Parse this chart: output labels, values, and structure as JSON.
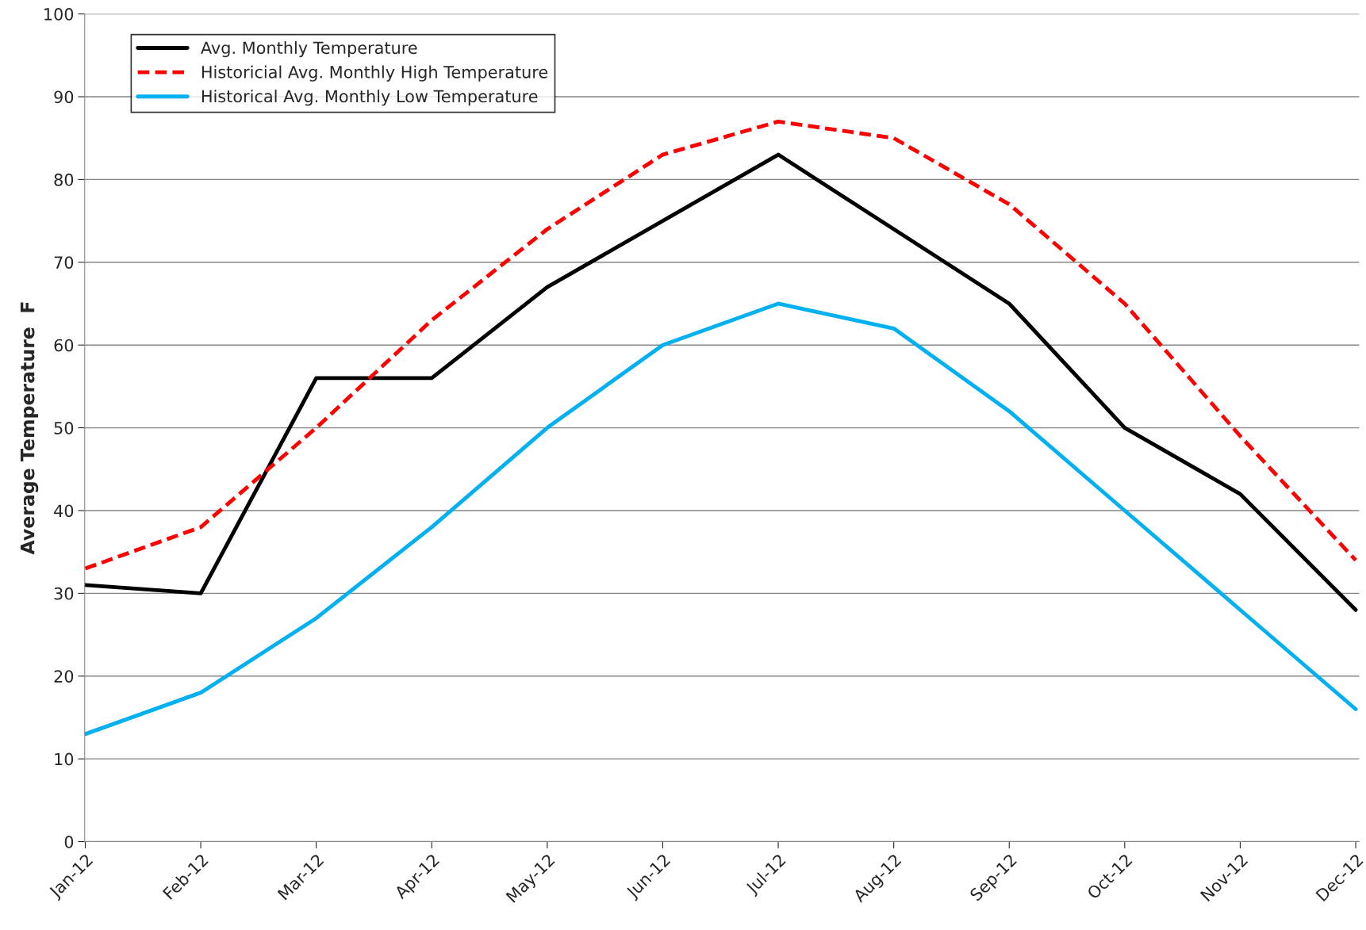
{
  "chart_data": {
    "type": "line",
    "ylabel": "Average Temperature  F",
    "categories": [
      "Jan-12",
      "Feb-12",
      "Mar-12",
      "Apr-12",
      "May-12",
      "Jun-12",
      "Jul-12",
      "Aug-12",
      "Sep-12",
      "Oct-12",
      "Nov-12",
      "Dec-12"
    ],
    "series": [
      {
        "name": "Avg. Monthly Temperature",
        "color": "#000000",
        "line_style": "solid",
        "values": [
          31,
          30,
          56,
          56,
          67,
          75,
          83,
          74,
          65,
          50,
          42,
          28
        ]
      },
      {
        "name": "Historicial Avg. Monthly High Temperature",
        "color": "#ff0000",
        "line_style": "dashed",
        "values": [
          33,
          38,
          50,
          63,
          74,
          83,
          87,
          85,
          77,
          65,
          49,
          34
        ]
      },
      {
        "name": "Historical Avg. Monthly Low Temperature",
        "color": "#00b0f0",
        "line_style": "solid",
        "values": [
          13,
          18,
          27,
          38,
          50,
          60,
          65,
          62,
          52,
          40,
          28,
          16
        ]
      }
    ],
    "ylim": [
      0,
      100
    ],
    "yticks": [
      0,
      10,
      20,
      30,
      40,
      50,
      60,
      70,
      80,
      90,
      100
    ],
    "grid": "y",
    "legend": "top left"
  }
}
